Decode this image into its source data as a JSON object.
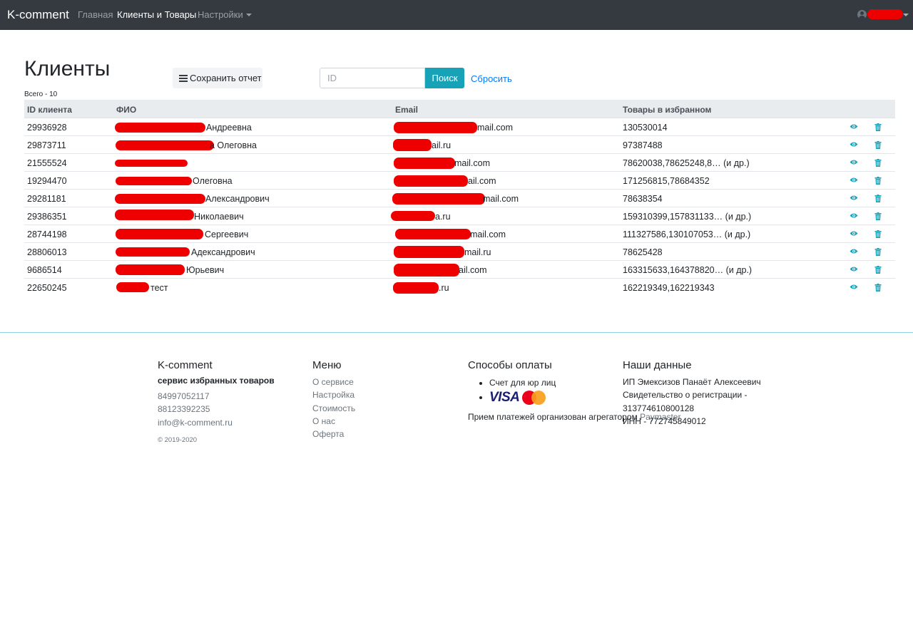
{
  "navbar": {
    "brand": "K-comment",
    "links": [
      "Главная",
      "Клиенты и Товары",
      "Настройки"
    ]
  },
  "page": {
    "title": "Клиенты",
    "save_label": "Сохранить отчет",
    "search_placeholder": "ID",
    "search_label": "Поиск",
    "reset_label": "Сбросить",
    "total": "Всего - 10"
  },
  "table": {
    "headers": [
      "ID клиента",
      "ФИО",
      "Email",
      "Товары в избранном"
    ],
    "rows": [
      {
        "id": "29936928",
        "fio": "Андреевна",
        "email": "mail.com",
        "items": "130530014"
      },
      {
        "id": "29873711",
        "fio": "а Олеговна",
        "email": "ail.ru",
        "items": "97387488"
      },
      {
        "id": "21555524",
        "fio": "",
        "email": "mail.com",
        "items": "78620038,78625248,8… (и др.)"
      },
      {
        "id": "19294470",
        "fio": "Олеговна",
        "email": "ail.com",
        "items": "171256815,78684352"
      },
      {
        "id": "29281181",
        "fio": "Александрович",
        "email": "mail.com",
        "items": "78638354"
      },
      {
        "id": "29386351",
        "fio": "Николаевич",
        "email": "a.ru",
        "items": "159310399,157831133… (и др.)"
      },
      {
        "id": "28744198",
        "fio": "Сергеевич",
        "email": "mail.com",
        "items": "111327586,130107053… (и др.)"
      },
      {
        "id": "28806013",
        "fio": "Адександрович",
        "email": "mail.ru",
        "items": "78625428"
      },
      {
        "id": "9686514",
        "fio": "Юрьевич",
        "email": "ail.com",
        "items": "163315633,164378820… (и др.)"
      },
      {
        "id": "22650245",
        "fio": "тест",
        "email": ".ru",
        "items": "162219349,162219343"
      }
    ]
  },
  "footer": {
    "about": {
      "title": "K-comment",
      "subtitle": "сервис избранных товаров",
      "phone1": "84997052117",
      "phone2": "88123392235",
      "email": "info@k-comment.ru",
      "copyright": "© 2019-2020"
    },
    "menu": {
      "title": "Меню",
      "items": [
        "О сервисе",
        "Настройка",
        "Стоимость",
        "О нас",
        "Оферта"
      ]
    },
    "payment": {
      "title": "Способы оплаты",
      "method1": "Счет для юр лиц",
      "visa": "VISA",
      "mc_text": "MasterCard",
      "note": "Прием платежей организован агрегатором",
      "note_link": "Paymaster"
    },
    "company": {
      "title": "Наши данные",
      "name": "ИП Эмексизов Панаёт Алексеевич",
      "reg_label": "Свидетельство о регистрации -",
      "reg_number": "313774610800128",
      "inn": "ИНН - 772745849012"
    }
  },
  "colors": {
    "navbar": "#343a40",
    "accent": "#17a2b8",
    "link": "#007bff",
    "redaction": "#ee0000"
  }
}
